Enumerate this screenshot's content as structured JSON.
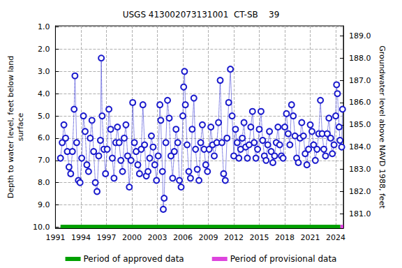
{
  "chart_data": {
    "type": "line",
    "title": "USGS 413002073131001  CT-SB    39",
    "y_label": "Depth to water level, feet below land\nsurface",
    "y2_label": "Groundwater level above NAVD 1988, feet",
    "xlim": [
      1991,
      2024.9
    ],
    "xticks": [
      1991,
      1994,
      1997,
      2000,
      2003,
      2006,
      2009,
      2012,
      2015,
      2018,
      2021,
      2024
    ],
    "ylim": [
      10.05,
      0.95
    ],
    "yticks": [
      {
        "value": 1,
        "label": "1.0"
      },
      {
        "value": 2,
        "label": "2.0"
      },
      {
        "value": 3,
        "label": "3.0"
      },
      {
        "value": 4,
        "label": "4.0"
      },
      {
        "value": 5,
        "label": "5.0"
      },
      {
        "value": 6,
        "label": "6.0"
      },
      {
        "value": 7,
        "label": "7.0"
      },
      {
        "value": 8,
        "label": "8.0"
      },
      {
        "value": 9,
        "label": "9.0"
      },
      {
        "value": 10,
        "label": "10.0"
      }
    ],
    "y2lim": [
      180.35,
      189.45
    ],
    "y2ticks": [
      {
        "value": 181,
        "label": "181.0"
      },
      {
        "value": 182,
        "label": "182.0"
      },
      {
        "value": 183,
        "label": "183.0"
      },
      {
        "value": 184,
        "label": "184.0"
      },
      {
        "value": 185,
        "label": "185.0"
      },
      {
        "value": 186,
        "label": "186.0"
      },
      {
        "value": 187,
        "label": "187.0"
      },
      {
        "value": 188,
        "label": "188.0"
      },
      {
        "value": 189,
        "label": "189.0"
      }
    ],
    "grid": true,
    "legend": "bottom",
    "series": [
      {
        "color": "#1a1acc",
        "marker": "circle",
        "line_style": "dotted",
        "x": [
          1991.6,
          1991.8,
          1992.0,
          1992.2,
          1992.4,
          1992.6,
          1992.8,
          1993.0,
          1993.2,
          1993.3,
          1993.5,
          1993.7,
          1993.9,
          1994.1,
          1994.3,
          1994.5,
          1994.7,
          1994.9,
          1995.1,
          1995.3,
          1995.5,
          1995.7,
          1995.9,
          1996.1,
          1996.3,
          1996.4,
          1996.5,
          1996.7,
          1996.9,
          1997.1,
          1997.3,
          1997.5,
          1997.7,
          1997.9,
          1998.1,
          1998.3,
          1998.5,
          1998.7,
          1998.9,
          1999.1,
          1999.3,
          1999.5,
          1999.7,
          1999.9,
          2000.1,
          2000.3,
          2000.5,
          2000.7,
          2000.9,
          2001.1,
          2001.3,
          2001.5,
          2001.7,
          2001.9,
          2002.1,
          2002.3,
          2002.5,
          2002.7,
          2002.9,
          2003.1,
          2003.3,
          2003.4,
          2003.6,
          2003.7,
          2003.8,
          2004.0,
          2004.2,
          2004.4,
          2004.6,
          2004.8,
          2005.0,
          2005.2,
          2005.4,
          2005.6,
          2005.8,
          2006.0,
          2006.1,
          2006.2,
          2006.3,
          2006.5,
          2006.7,
          2006.9,
          2007.1,
          2007.3,
          2007.5,
          2007.7,
          2007.9,
          2008.1,
          2008.3,
          2008.5,
          2008.7,
          2008.9,
          2009.1,
          2009.3,
          2009.5,
          2009.7,
          2010.0,
          2010.2,
          2010.4,
          2010.6,
          2010.8,
          2011.0,
          2011.2,
          2011.4,
          2011.6,
          2011.8,
          2012.0,
          2012.2,
          2012.4,
          2012.6,
          2012.8,
          2013.0,
          2013.2,
          2013.4,
          2013.6,
          2013.8,
          2014.0,
          2014.2,
          2014.4,
          2014.6,
          2014.8,
          2015.0,
          2015.2,
          2015.4,
          2015.6,
          2015.8,
          2016.0,
          2016.2,
          2016.4,
          2016.6,
          2016.8,
          2017.0,
          2017.2,
          2017.4,
          2017.6,
          2017.8,
          2018.0,
          2018.2,
          2018.4,
          2018.6,
          2018.8,
          2019.0,
          2019.2,
          2019.4,
          2019.6,
          2019.8,
          2020.0,
          2020.2,
          2020.4,
          2020.6,
          2020.8,
          2021.0,
          2021.2,
          2021.4,
          2021.6,
          2021.8,
          2022.0,
          2022.2,
          2022.4,
          2022.6,
          2022.8,
          2023.0,
          2023.2,
          2023.4,
          2023.6,
          2023.8,
          2024.0,
          2024.1,
          2024.2,
          2024.4,
          2024.5,
          2024.7,
          2024.8
        ],
        "values": [
          6.9,
          6.2,
          5.4,
          6.0,
          6.6,
          7.3,
          7.6,
          6.6,
          4.7,
          3.2,
          6.2,
          7.9,
          8.0,
          6.9,
          5.0,
          5.7,
          7.2,
          7.5,
          6.0,
          5.2,
          6.6,
          8.0,
          8.4,
          6.8,
          6.1,
          2.4,
          5.0,
          6.5,
          7.6,
          6.5,
          4.7,
          5.6,
          6.9,
          7.8,
          6.2,
          5.5,
          6.2,
          7.0,
          7.5,
          6.0,
          5.4,
          6.8,
          8.2,
          7.0,
          4.4,
          6.2,
          6.6,
          7.2,
          7.6,
          6.5,
          4.5,
          6.3,
          7.7,
          7.5,
          6.9,
          5.9,
          6.4,
          7.2,
          7.9,
          6.8,
          4.5,
          5.2,
          7.5,
          9.2,
          8.7,
          6.2,
          4.3,
          5.1,
          6.8,
          7.8,
          6.6,
          5.6,
          6.2,
          7.9,
          8.2,
          5.0,
          3.7,
          3.0,
          4.5,
          6.3,
          7.5,
          7.8,
          5.6,
          4.2,
          6.5,
          7.4,
          7.9,
          6.2,
          5.4,
          6.5,
          7.2,
          7.5,
          6.5,
          5.5,
          6.3,
          6.8,
          6.2,
          5.3,
          3.4,
          6.2,
          7.6,
          7.9,
          6.0,
          4.4,
          2.9,
          5.0,
          6.8,
          5.6,
          6.2,
          6.9,
          6.5,
          6.0,
          5.3,
          6.4,
          6.9,
          6.3,
          5.5,
          4.8,
          6.2,
          6.9,
          6.5,
          5.6,
          4.8,
          6.1,
          6.8,
          7.0,
          6.3,
          5.7,
          6.6,
          7.1,
          6.8,
          6.2,
          5.5,
          6.3,
          6.8,
          6.9,
          5.5,
          4.9,
          5.8,
          6.3,
          4.5,
          5.0,
          5.9,
          6.9,
          7.1,
          6.0,
          5.3,
          5.9,
          6.7,
          7.2,
          6.5,
          5.4,
          5.7,
          6.3,
          7.0,
          6.5,
          5.8,
          4.3,
          5.8,
          6.5,
          6.8,
          5.8,
          5.1,
          6.0,
          6.7,
          6.3,
          5.0,
          3.6,
          4.0,
          5.5,
          6.1,
          6.4,
          4.7
        ]
      },
      {
        "name": "Period of approved data",
        "color": "#00a000",
        "marker": "none",
        "line_style": "solid",
        "x": [
          1991.6,
          2024.55
        ],
        "values": [
          9.97,
          9.97
        ]
      },
      {
        "name": "Period of provisional data",
        "color": "#dd44dd",
        "marker": "none",
        "line_style": "solid",
        "x": [
          2024.55,
          2024.9
        ],
        "values": [
          9.97,
          9.97
        ]
      }
    ]
  }
}
